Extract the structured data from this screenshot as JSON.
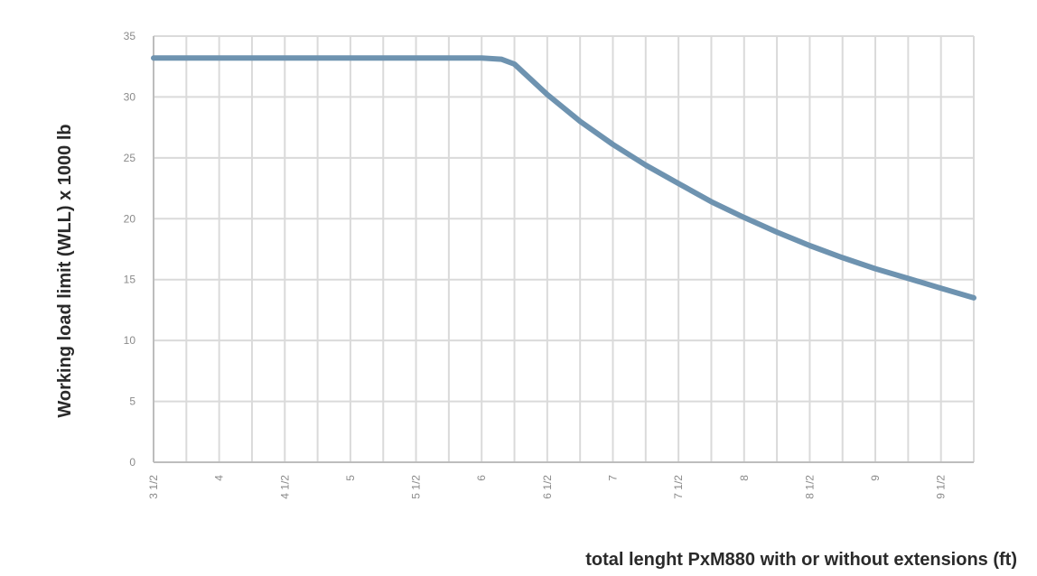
{
  "chart_data": {
    "type": "line",
    "xlabel": "total lenght PxM880 with or without extensions (ft)",
    "ylabel": "Working load limit (WLL) x 1000 lb",
    "ylim": [
      0,
      35
    ],
    "xlim": [
      3.5,
      9.75
    ],
    "yticks": [
      0,
      5,
      10,
      15,
      20,
      25,
      30,
      35
    ],
    "xticks": [
      {
        "value": 3.5,
        "label": "3 1/2"
      },
      {
        "value": 4,
        "label": "4"
      },
      {
        "value": 4.5,
        "label": "4 1/2"
      },
      {
        "value": 5,
        "label": "5"
      },
      {
        "value": 5.5,
        "label": "5 1/2"
      },
      {
        "value": 6,
        "label": "6"
      },
      {
        "value": 6.5,
        "label": "6 1/2"
      },
      {
        "value": 7,
        "label": "7"
      },
      {
        "value": 7.5,
        "label": "7 1/2"
      },
      {
        "value": 8,
        "label": "8"
      },
      {
        "value": 8.5,
        "label": "8 1/2"
      },
      {
        "value": 9,
        "label": "9"
      },
      {
        "value": 9.5,
        "label": "9 1/2"
      }
    ],
    "grid": true,
    "series": [
      {
        "color": "#6e93b0",
        "points": [
          [
            3.5,
            33.2
          ],
          [
            4.0,
            33.2
          ],
          [
            4.5,
            33.2
          ],
          [
            5.0,
            33.2
          ],
          [
            5.5,
            33.2
          ],
          [
            6.0,
            33.2
          ],
          [
            6.15,
            33.1
          ],
          [
            6.25,
            32.7
          ],
          [
            6.5,
            30.2
          ],
          [
            6.75,
            28.0
          ],
          [
            7.0,
            26.1
          ],
          [
            7.25,
            24.4
          ],
          [
            7.5,
            22.9
          ],
          [
            7.75,
            21.4
          ],
          [
            8.0,
            20.1
          ],
          [
            8.25,
            18.9
          ],
          [
            8.5,
            17.8
          ],
          [
            8.75,
            16.8
          ],
          [
            9.0,
            15.9
          ],
          [
            9.25,
            15.1
          ],
          [
            9.5,
            14.3
          ],
          [
            9.75,
            13.5
          ]
        ]
      }
    ]
  }
}
